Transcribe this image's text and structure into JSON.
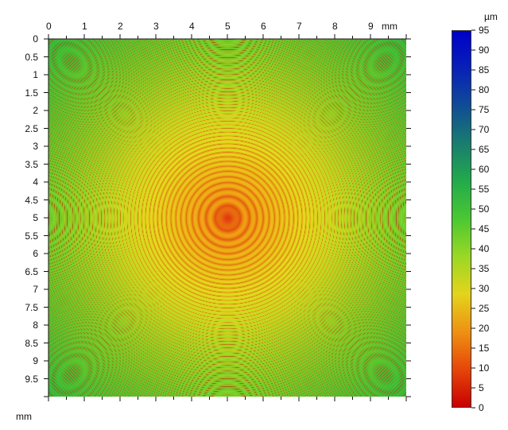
{
  "image": {
    "x_unit": "mm",
    "y_unit": "mm",
    "x_ticks": [
      "0",
      "1",
      "2",
      "3",
      "4",
      "5",
      "6",
      "7",
      "8",
      "9"
    ],
    "y_ticks": [
      "0",
      "0.5",
      "1",
      "1.5",
      "2",
      "2.5",
      "3",
      "3.5",
      "4",
      "4.5",
      "5",
      "5.5",
      "6",
      "6.5",
      "7",
      "7.5",
      "8",
      "8.5",
      "9",
      "9.5"
    ],
    "x_range_mm": [
      0,
      10
    ],
    "y_range_mm": [
      0,
      10
    ],
    "pattern": "concentric rings centred at (5 mm, 5 mm)",
    "colors": {
      "scale_low": "#cc0000",
      "scale_mid": "#33cc33",
      "scale_high": "#0000cc",
      "center_spot": "#e23a10",
      "ring_dark": "#b84010"
    }
  },
  "colorbar": {
    "unit": "µm",
    "min": 0,
    "max": 95,
    "tick_labels": [
      "95",
      "90",
      "85",
      "80",
      "75",
      "70",
      "65",
      "60",
      "55",
      "50",
      "45",
      "40",
      "35",
      "30",
      "25",
      "20",
      "15",
      "10",
      "5",
      "0"
    ]
  }
}
